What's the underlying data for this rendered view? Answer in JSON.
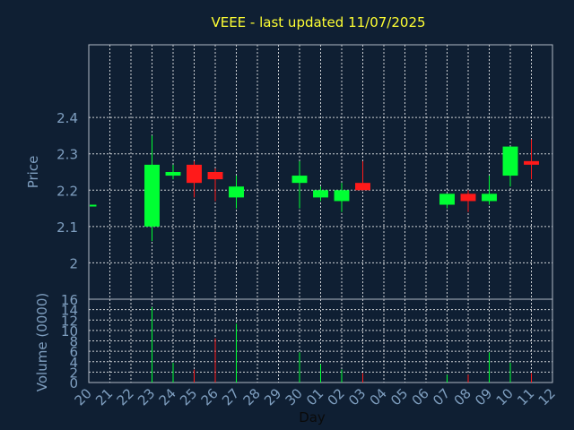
{
  "chart_data": {
    "type": "candlestick",
    "title": "VEEE - last updated 11/07/2025",
    "xlabel": "Day",
    "ylabel": "Price",
    "volume_label": "Volume (0000)",
    "x_ticks": [
      "20",
      "21",
      "22",
      "23",
      "24",
      "25",
      "26",
      "27",
      "28",
      "29",
      "30",
      "01",
      "02",
      "03",
      "04",
      "05",
      "06",
      "07",
      "08",
      "09",
      "10",
      "11",
      "12"
    ],
    "price_ticks": [
      "2",
      "2.1",
      "2.2",
      "2.3",
      "2.4"
    ],
    "price_ylim": [
      1.9,
      2.6
    ],
    "volume_ticks": [
      "0",
      "2",
      "4",
      "6",
      "8",
      "10",
      "12",
      "14",
      "16"
    ],
    "volume_ylim": [
      0,
      16
    ],
    "grid": true,
    "colors": {
      "background": "#0f1f33",
      "up": "#00ff33",
      "down": "#ff1a1a",
      "title": "#ffff33",
      "axis_text": "#7f9fc0",
      "grid": "#ffffff"
    },
    "candles": [
      {
        "day": "20",
        "open": 2.16,
        "close": 2.16,
        "high": 2.16,
        "low": 2.16,
        "volume": 0
      },
      {
        "day": "23",
        "open": 2.1,
        "close": 2.27,
        "high": 2.35,
        "low": 2.06,
        "volume": 14.5
      },
      {
        "day": "24",
        "open": 2.24,
        "close": 2.25,
        "high": 2.27,
        "low": 2.23,
        "volume": 3.8
      },
      {
        "day": "25",
        "open": 2.27,
        "close": 2.22,
        "high": 2.28,
        "low": 2.18,
        "volume": 2.5
      },
      {
        "day": "26",
        "open": 2.25,
        "close": 2.23,
        "high": 2.26,
        "low": 2.17,
        "volume": 8.5
      },
      {
        "day": "27",
        "open": 2.18,
        "close": 2.21,
        "high": 2.24,
        "low": 2.15,
        "volume": 11.3
      },
      {
        "day": "30",
        "open": 2.22,
        "close": 2.24,
        "high": 2.28,
        "low": 2.15,
        "volume": 5.8
      },
      {
        "day": "01",
        "open": 2.18,
        "close": 2.2,
        "high": 2.21,
        "low": 2.17,
        "volume": 3.5
      },
      {
        "day": "02",
        "open": 2.17,
        "close": 2.2,
        "high": 2.22,
        "low": 2.14,
        "volume": 2.5
      },
      {
        "day": "03",
        "open": 2.22,
        "close": 2.2,
        "high": 2.28,
        "low": 2.2,
        "volume": 1.8
      },
      {
        "day": "07",
        "open": 2.16,
        "close": 2.19,
        "high": 2.19,
        "low": 2.15,
        "volume": 1.5
      },
      {
        "day": "08",
        "open": 2.19,
        "close": 2.17,
        "high": 2.2,
        "low": 2.14,
        "volume": 1.5
      },
      {
        "day": "09",
        "open": 2.17,
        "close": 2.19,
        "high": 2.24,
        "low": 2.16,
        "volume": 5.8
      },
      {
        "day": "10",
        "open": 2.24,
        "close": 2.32,
        "high": 2.32,
        "low": 2.21,
        "volume": 3.8
      },
      {
        "day": "11",
        "open": 2.28,
        "close": 2.27,
        "high": 2.34,
        "low": 2.23,
        "volume": 1.8
      }
    ]
  }
}
